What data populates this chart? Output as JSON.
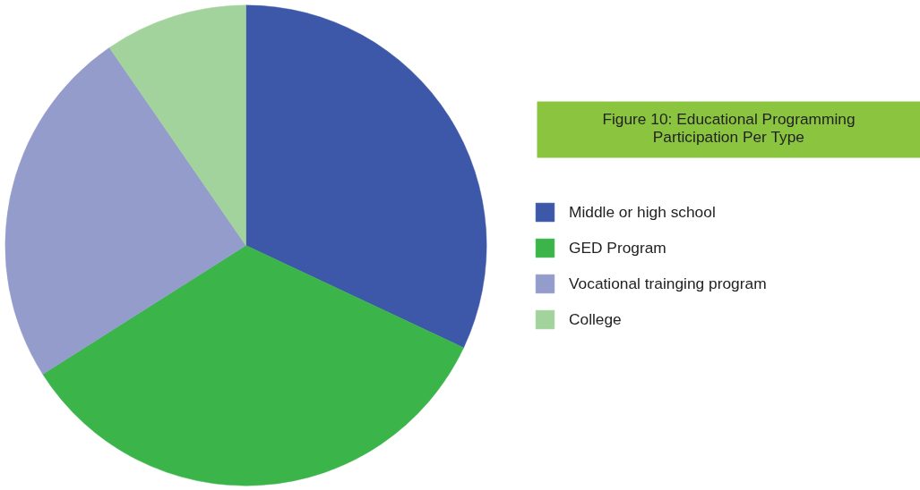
{
  "chart_data": {
    "type": "pie",
    "title": "Figure 10: Educational Programming Participation Per Type",
    "categories": [
      "Middle or high school",
      "GED Program",
      "Vocational trainging program",
      "College"
    ],
    "values": [
      32,
      34,
      24.4,
      9.6
    ],
    "colors": [
      "#3d58a8",
      "#3bb54a",
      "#949ccc",
      "#a3d39c"
    ],
    "legend": "right"
  }
}
